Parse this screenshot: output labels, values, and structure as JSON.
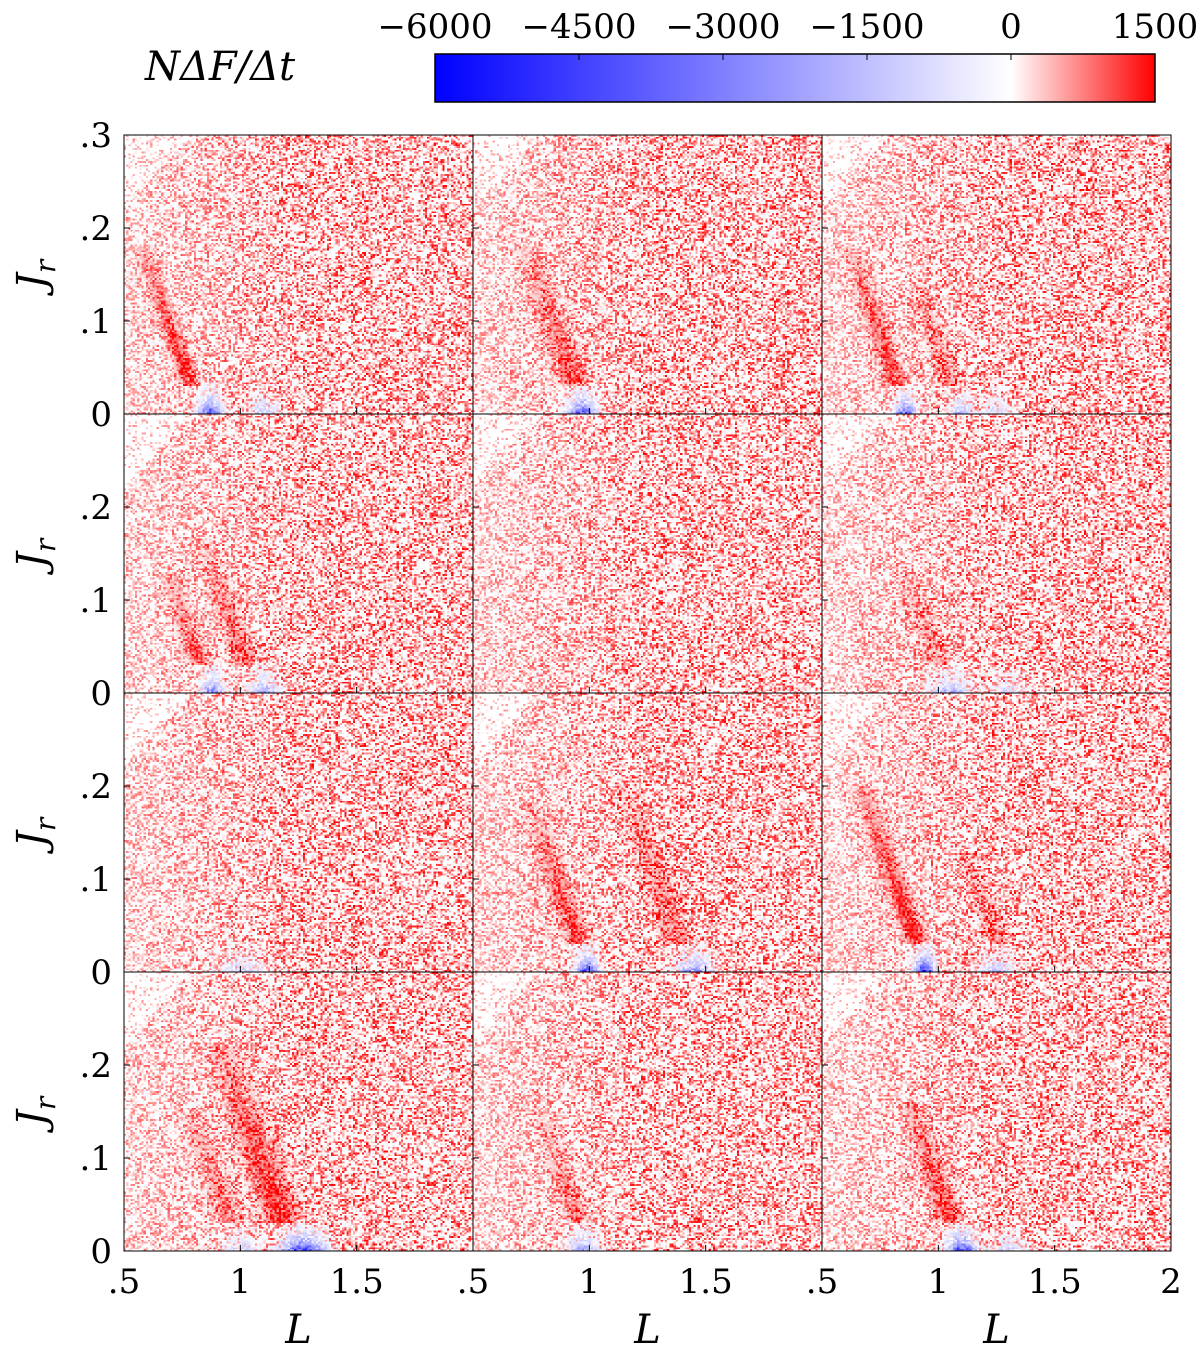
{
  "chart_data": {
    "type": "heatmap",
    "layout": {
      "rows": 4,
      "cols": 3
    },
    "colorbar": {
      "label": "NΔF/Δt",
      "min": -6000,
      "max": 1500,
      "ticks": [
        -6000,
        -4500,
        -3000,
        -1500,
        0,
        1500
      ],
      "tick_labels": [
        "−6000",
        "−4500",
        "−3000",
        "−1500",
        "0",
        "1500"
      ],
      "colors": {
        "min": "#0000ff",
        "zero": "#ffffff",
        "max": "#ff0000"
      }
    },
    "xlabel": "L",
    "ylabel": "J_r",
    "xlim": [
      0.5,
      2.0
    ],
    "ylim": [
      0,
      0.3
    ],
    "x_ticks": [
      0.5,
      1,
      1.5,
      2
    ],
    "x_tick_labels": [
      ".5",
      "1",
      "1.5",
      "2"
    ],
    "y_ticks": [
      0,
      0.1,
      0.2,
      0.3
    ],
    "y_tick_labels": [
      "0",
      ".1",
      ".2",
      ".3"
    ],
    "panels": [
      {
        "row": 0,
        "col": 0,
        "ridges": [
          {
            "L0": 0.78,
            "amp": 1300,
            "width": 0.025,
            "jtop": 0.18
          }
        ],
        "sinks": [
          {
            "L": 0.87,
            "amp": 5500,
            "w": 0.03
          },
          {
            "L": 1.1,
            "amp": 2000,
            "w": 0.04
          }
        ]
      },
      {
        "row": 0,
        "col": 1,
        "ridges": [
          {
            "L0": 0.93,
            "amp": 950,
            "width": 0.04,
            "jtop": 0.18
          }
        ],
        "sinks": [
          {
            "L": 0.97,
            "amp": 5000,
            "w": 0.04
          }
        ]
      },
      {
        "row": 0,
        "col": 2,
        "ridges": [
          {
            "L0": 0.82,
            "amp": 1100,
            "width": 0.03,
            "jtop": 0.18
          },
          {
            "L0": 1.05,
            "amp": 650,
            "width": 0.03,
            "jtop": 0.14
          }
        ],
        "sinks": [
          {
            "L": 0.86,
            "amp": 4500,
            "w": 0.03
          },
          {
            "L": 1.1,
            "amp": 2500,
            "w": 0.03
          },
          {
            "L": 1.25,
            "amp": 1500,
            "w": 0.04
          }
        ]
      },
      {
        "row": 1,
        "col": 0,
        "ridges": [
          {
            "L0": 0.82,
            "amp": 900,
            "width": 0.03,
            "jtop": 0.13
          },
          {
            "L0": 1.02,
            "amp": 800,
            "width": 0.035,
            "jtop": 0.16
          }
        ],
        "sinks": [
          {
            "L": 0.88,
            "amp": 4000,
            "w": 0.03
          },
          {
            "L": 1.1,
            "amp": 3000,
            "w": 0.04
          }
        ]
      },
      {
        "row": 1,
        "col": 1,
        "ridges": [],
        "sinks": []
      },
      {
        "row": 1,
        "col": 2,
        "ridges": [
          {
            "L0": 1.0,
            "amp": 550,
            "width": 0.04,
            "jtop": 0.13
          }
        ],
        "sinks": [
          {
            "L": 1.05,
            "amp": 2500,
            "w": 0.06
          },
          {
            "L": 1.3,
            "amp": 1500,
            "w": 0.05
          }
        ]
      },
      {
        "row": 2,
        "col": 0,
        "ridges": [],
        "sinks": [
          {
            "L": 1.0,
            "amp": 1500,
            "w": 0.06
          }
        ]
      },
      {
        "row": 2,
        "col": 1,
        "ridges": [
          {
            "L0": 0.95,
            "amp": 1000,
            "width": 0.035,
            "jtop": 0.18
          },
          {
            "L0": 1.38,
            "amp": 700,
            "width": 0.04,
            "jtop": 0.2
          }
        ],
        "sinks": [
          {
            "L": 0.99,
            "amp": 5500,
            "w": 0.03
          },
          {
            "L": 1.45,
            "amp": 3500,
            "w": 0.05
          }
        ]
      },
      {
        "row": 2,
        "col": 2,
        "ridges": [
          {
            "L0": 0.9,
            "amp": 1400,
            "width": 0.03,
            "jtop": 0.2
          },
          {
            "L0": 1.25,
            "amp": 650,
            "width": 0.03,
            "jtop": 0.13
          }
        ],
        "sinks": [
          {
            "L": 0.94,
            "amp": 6000,
            "w": 0.03
          },
          {
            "L": 1.25,
            "amp": 2000,
            "w": 0.05
          }
        ]
      },
      {
        "row": 3,
        "col": 0,
        "ridges": [
          {
            "L0": 0.95,
            "amp": 700,
            "width": 0.04,
            "jtop": 0.15
          },
          {
            "L0": 1.18,
            "amp": 1200,
            "width": 0.05,
            "jtop": 0.22
          }
        ],
        "sinks": [
          {
            "L": 1.27,
            "amp": 6000,
            "w": 0.06
          },
          {
            "L": 1.0,
            "amp": 1500,
            "w": 0.05
          }
        ]
      },
      {
        "row": 3,
        "col": 1,
        "ridges": [
          {
            "L0": 0.95,
            "amp": 750,
            "width": 0.03,
            "jtop": 0.15
          }
        ],
        "sinks": [
          {
            "L": 0.97,
            "amp": 3000,
            "w": 0.04
          }
        ]
      },
      {
        "row": 3,
        "col": 2,
        "ridges": [
          {
            "L0": 1.05,
            "amp": 1100,
            "width": 0.035,
            "jtop": 0.16
          }
        ],
        "sinks": [
          {
            "L": 1.1,
            "amp": 5500,
            "w": 0.04
          },
          {
            "L": 1.3,
            "amp": 1500,
            "w": 0.05
          }
        ]
      }
    ]
  }
}
